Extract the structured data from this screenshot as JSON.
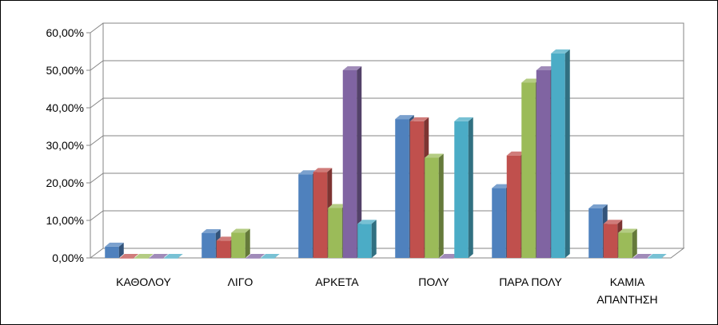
{
  "chart_data": {
    "type": "bar",
    "categories": [
      "ΚΑΘΟΛΟΥ",
      "ΛΙΓΟ",
      "ΑΡΚΕΤΑ",
      "ΠΟΛΥ",
      "ΠΑΡΑ ΠΟΛΥ",
      "ΚΑΜΙΑ ΑΠΑΝΤΗΣΗ"
    ],
    "category_lines": [
      [
        "ΚΑΘΟΛΟΥ"
      ],
      [
        "ΛΙΓΟ"
      ],
      [
        "ΑΡΚΕΤΑ"
      ],
      [
        "ΠΟΛΥ"
      ],
      [
        "ΠΑΡΑ ΠΟΛΥ"
      ],
      [
        "ΚΑΜΙΑ",
        "ΑΠΑΝΤΗΣΗ"
      ]
    ],
    "series": [
      {
        "color": "#4F81BD",
        "values": [
          3.0,
          6.6,
          22.3,
          37.0,
          18.6,
          13.2
        ]
      },
      {
        "color": "#C0504D",
        "values": [
          0,
          4.6,
          22.9,
          36.4,
          27.3,
          9.1
        ]
      },
      {
        "color": "#9BBB59",
        "values": [
          0,
          6.7,
          13.3,
          26.7,
          46.7,
          6.7
        ]
      },
      {
        "color": "#8064A2",
        "values": [
          0,
          0,
          50.0,
          0,
          50.0,
          0
        ]
      },
      {
        "color": "#4BACC6",
        "values": [
          0,
          0,
          9.1,
          36.4,
          54.5,
          0
        ]
      }
    ],
    "ylim": [
      0,
      60
    ],
    "yticks": [
      0,
      10,
      20,
      30,
      40,
      50,
      60
    ],
    "ytick_labels": [
      "0,00%",
      "10,00%",
      "20,00%",
      "30,00%",
      "40,00%",
      "50,00%",
      "60,00%"
    ],
    "grid": true,
    "legend": "none",
    "style": "3d-clustered-column"
  }
}
